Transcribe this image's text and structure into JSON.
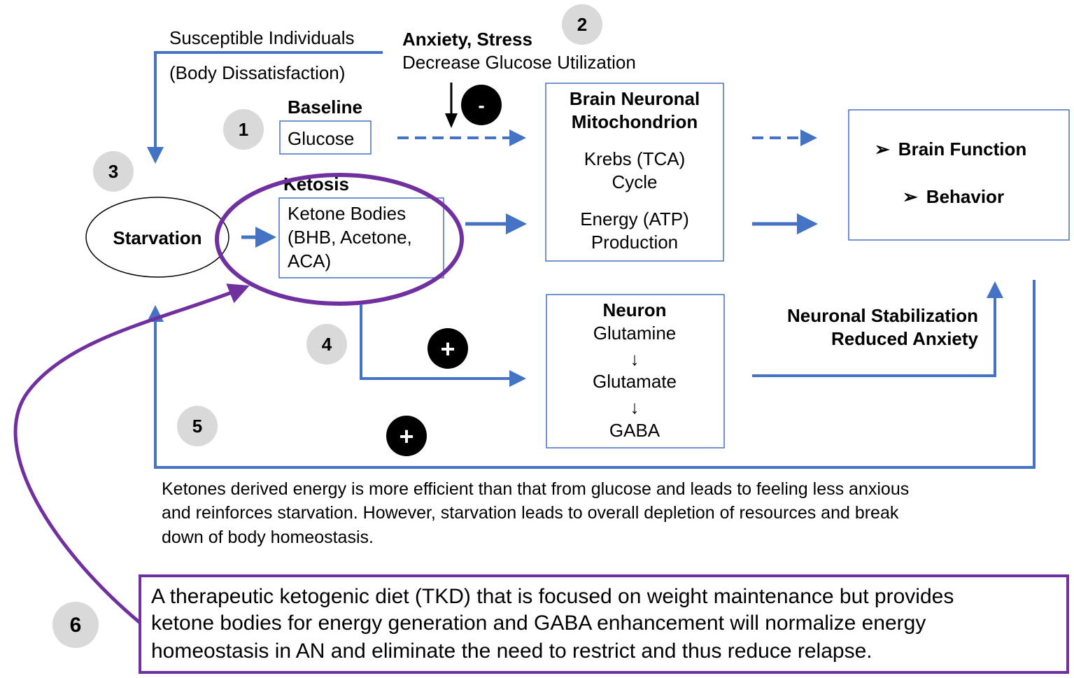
{
  "colors": {
    "blue": "#4472c4",
    "purple": "#7030a0",
    "gray_badge": "#d9d9d9"
  },
  "top": {
    "susceptible": "Susceptible Individuals",
    "body": "(Body Dissatisfaction)",
    "anxiety": "Anxiety, Stress",
    "decrease": "Decrease Glucose Utilization",
    "minus": "-"
  },
  "badges": [
    "1",
    "2",
    "3",
    "4",
    "5",
    "6"
  ],
  "baseline": {
    "label": "Baseline",
    "glucose": "Glucose"
  },
  "ketosis": {
    "label": "Ketosis",
    "lines": [
      "Ketone Bodies",
      "(BHB, Acetone,",
      "ACA)"
    ]
  },
  "starvation": "Starvation",
  "mito": {
    "lines": [
      "Brain Neuronal",
      "Mitochondrion"
    ],
    "krebs": [
      "Krebs (TCA)",
      "Cycle"
    ],
    "energy": [
      "Energy (ATP)",
      "Production"
    ]
  },
  "outcomes": {
    "items": [
      "Brain Function",
      "Behavior"
    ],
    "bullet": "➢"
  },
  "neuron": {
    "title": "Neuron",
    "steps": [
      "Glutamine",
      "↓",
      "Glutamate",
      "↓",
      "GABA"
    ]
  },
  "stabilization": [
    "Neuronal Stabilization",
    "Reduced Anxiety"
  ],
  "plus": "+",
  "paragraph": [
    "Ketones derived energy is more efficient than that from glucose and leads to feeling less anxious",
    "and reinforces starvation. However, starvation leads to overall depletion of resources and break",
    "down of body homeostasis."
  ],
  "tkd": [
    "A therapeutic ketogenic diet (TKD) that is focused on weight maintenance but provides",
    "ketone bodies for energy generation and GABA enhancement will normalize energy",
    "homeostasis in AN and eliminate the need to restrict and thus reduce relapse."
  ]
}
